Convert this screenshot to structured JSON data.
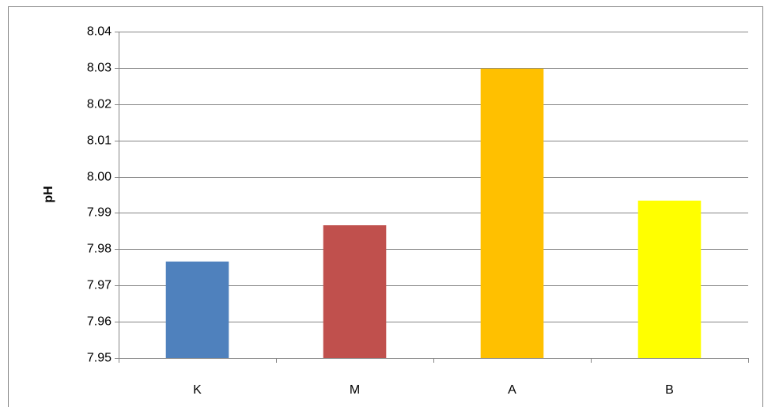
{
  "chart_data": {
    "type": "bar",
    "y_label": "pH",
    "categories": [
      "K",
      "M",
      "A",
      "B"
    ],
    "values": [
      7.9766,
      7.9866,
      8.0298,
      7.9934
    ],
    "colors": [
      "#4f81bd",
      "#c0504d",
      "#ffc000",
      "#ffff00"
    ],
    "ylim": [
      7.95,
      8.04
    ],
    "yticks": [
      7.95,
      7.96,
      7.97,
      7.98,
      7.99,
      {
        "value": 8,
        "label": "8.00"
      },
      8.01,
      8.02,
      8.03,
      8.04
    ],
    "grid": true
  }
}
